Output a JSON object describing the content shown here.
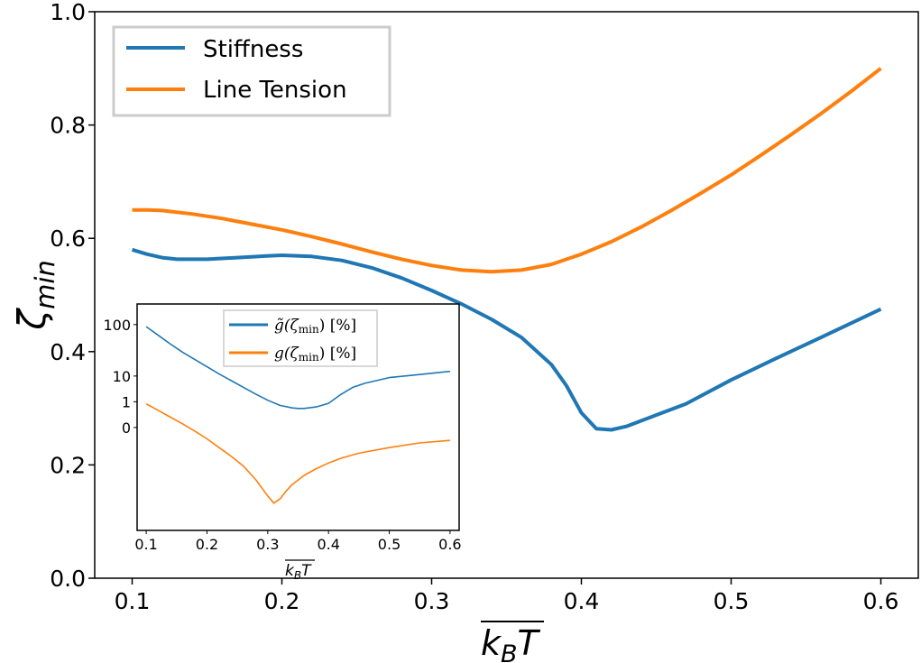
{
  "chart_data": [
    {
      "id": "main",
      "type": "line",
      "title": "",
      "xlabel": "k_B T (overlined)",
      "xlabel_main": "k",
      "xlabel_sub": "B",
      "xlabel_tail": "T",
      "ylabel_main": "ζ",
      "ylabel_sub": "min",
      "xlim": [
        0.075,
        0.625
      ],
      "ylim": [
        0.0,
        1.0
      ],
      "xticks": [
        0.1,
        0.2,
        0.3,
        0.4,
        0.5,
        0.6
      ],
      "xtick_labels": [
        "0.1",
        "0.2",
        "0.3",
        "0.4",
        "0.5",
        "0.6"
      ],
      "yticks": [
        0.0,
        0.2,
        0.4,
        0.6,
        0.8,
        1.0
      ],
      "ytick_labels": [
        "0.0",
        "0.2",
        "0.4",
        "0.6",
        "0.8",
        "1.0"
      ],
      "legend_position": "top-left",
      "series": [
        {
          "name": "Stiffness",
          "color": "#1f77b4",
          "x": [
            0.1,
            0.11,
            0.12,
            0.13,
            0.15,
            0.17,
            0.19,
            0.2,
            0.22,
            0.24,
            0.26,
            0.28,
            0.3,
            0.32,
            0.34,
            0.36,
            0.38,
            0.39,
            0.4,
            0.41,
            0.42,
            0.43,
            0.45,
            0.47,
            0.5,
            0.53,
            0.56,
            0.6
          ],
          "y": [
            0.58,
            0.572,
            0.566,
            0.563,
            0.563,
            0.566,
            0.569,
            0.57,
            0.568,
            0.561,
            0.548,
            0.53,
            0.508,
            0.484,
            0.457,
            0.425,
            0.377,
            0.34,
            0.292,
            0.264,
            0.262,
            0.268,
            0.288,
            0.308,
            0.35,
            0.388,
            0.425,
            0.475
          ]
        },
        {
          "name": "Line Tension",
          "color": "#ff7f0e",
          "x": [
            0.1,
            0.11,
            0.12,
            0.14,
            0.16,
            0.18,
            0.2,
            0.22,
            0.24,
            0.26,
            0.28,
            0.3,
            0.32,
            0.34,
            0.36,
            0.38,
            0.4,
            0.42,
            0.44,
            0.46,
            0.48,
            0.5,
            0.52,
            0.54,
            0.56,
            0.58,
            0.6
          ],
          "y": [
            0.65,
            0.65,
            0.649,
            0.643,
            0.635,
            0.625,
            0.615,
            0.603,
            0.59,
            0.576,
            0.563,
            0.552,
            0.544,
            0.541,
            0.544,
            0.554,
            0.572,
            0.594,
            0.62,
            0.649,
            0.68,
            0.712,
            0.747,
            0.783,
            0.82,
            0.859,
            0.9
          ]
        }
      ]
    },
    {
      "id": "inset",
      "type": "line",
      "title": "",
      "xlabel_main": "k",
      "xlabel_sub": "B",
      "xlabel_tail": "T",
      "xlim": [
        0.085,
        0.615
      ],
      "ylim": [
        -2.0,
        2.4
      ],
      "yscale": "log10 (symmetric-like)",
      "xticks": [
        0.1,
        0.2,
        0.3,
        0.4,
        0.5,
        0.6
      ],
      "xtick_labels": [
        "0.1",
        "0.2",
        "0.3",
        "0.4",
        "0.5",
        "0.6"
      ],
      "ytick_values_log10": [
        0,
        0.5,
        1,
        2
      ],
      "ytick_labels": [
        "0",
        "1",
        "10",
        "100"
      ],
      "legend_position": "top-right",
      "series": [
        {
          "name_main": "g̃(ζ",
          "name_sub": "min",
          "name_tail": ") [%]",
          "color": "#1f77b4",
          "x": [
            0.1,
            0.12,
            0.14,
            0.16,
            0.18,
            0.2,
            0.22,
            0.24,
            0.26,
            0.28,
            0.3,
            0.32,
            0.34,
            0.35,
            0.36,
            0.38,
            0.4,
            0.42,
            0.44,
            0.46,
            0.5,
            0.55,
            0.6
          ],
          "y": [
            1.96,
            1.79,
            1.62,
            1.46,
            1.32,
            1.18,
            1.04,
            0.91,
            0.78,
            0.65,
            0.53,
            0.43,
            0.38,
            0.37,
            0.37,
            0.4,
            0.47,
            0.64,
            0.78,
            0.86,
            0.97,
            1.03,
            1.09
          ]
        },
        {
          "name_main": "g(ζ",
          "name_sub": "min",
          "name_tail": ") [%]",
          "color": "#ff7f0e",
          "x": [
            0.1,
            0.12,
            0.14,
            0.16,
            0.18,
            0.2,
            0.22,
            0.24,
            0.26,
            0.28,
            0.29,
            0.3,
            0.31,
            0.32,
            0.33,
            0.34,
            0.36,
            0.38,
            0.4,
            0.42,
            0.45,
            0.5,
            0.55,
            0.6
          ],
          "y": [
            0.46,
            0.33,
            0.2,
            0.07,
            -0.07,
            -0.22,
            -0.39,
            -0.56,
            -0.75,
            -1.01,
            -1.17,
            -1.33,
            -1.47,
            -1.39,
            -1.24,
            -1.11,
            -0.93,
            -0.8,
            -0.69,
            -0.6,
            -0.5,
            -0.39,
            -0.3,
            -0.25
          ]
        }
      ]
    }
  ]
}
